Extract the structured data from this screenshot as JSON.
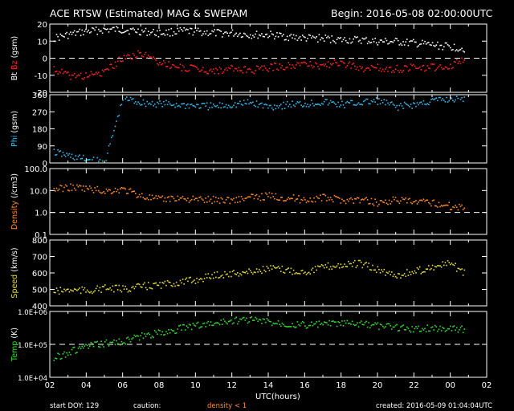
{
  "header": {
    "title": "ACE RTSW (Estimated) MAG & SWEPAM",
    "begin": "Begin: 2016-05-08 02:00:00UTC"
  },
  "footer": {
    "start_doy": "start DOY: 129",
    "caution": "caution:",
    "density_note": "density < 1",
    "created": "created: 2016-05-09 01:04:04UTC"
  },
  "colors": {
    "background": "#000000",
    "axes": "#ffffff",
    "bt": "#ffffff",
    "bz": "#ff2020",
    "phi": "#33bbee",
    "density": "#ff8c2a",
    "speed": "#e6dd3c",
    "temp": "#33dd33",
    "caution_note": "#ff8c2a"
  },
  "chart_data": [
    {
      "type": "scatter",
      "ylabel": [
        {
          "text": "Bt",
          "color": "#ffffff"
        },
        {
          "text": "Bz",
          "color": "#ff2020"
        },
        {
          "text": "(gsm)",
          "color": "#ffffff"
        }
      ],
      "ylim": [
        -20,
        20
      ],
      "yticks": [
        "20",
        "10",
        "0",
        "-10",
        "-20"
      ],
      "ytick_values": [
        20,
        10,
        0,
        -10,
        -20
      ],
      "refline": 0,
      "series": [
        {
          "color": "#ffffff",
          "x": [
            2.2,
            3,
            4,
            5,
            6,
            7,
            8,
            9,
            10,
            11,
            12,
            13,
            14,
            15,
            16,
            17,
            18,
            19,
            20,
            21,
            22,
            23,
            24,
            24.8
          ],
          "y": [
            12,
            14,
            16,
            17,
            17,
            16,
            15,
            16,
            16,
            15,
            15,
            14,
            14,
            13,
            12,
            12,
            11,
            11,
            10,
            10,
            9,
            8,
            7,
            6
          ]
        },
        {
          "color": "#ff2020",
          "x": [
            2.2,
            3,
            4,
            5,
            6,
            7,
            8,
            9,
            10,
            11,
            12,
            13,
            14,
            15,
            16,
            17,
            18,
            19,
            20,
            21,
            22,
            23,
            24,
            24.8
          ],
          "y": [
            -6,
            -10,
            -10,
            -8,
            1,
            3,
            -2,
            -5,
            -6,
            -7,
            -6,
            -7,
            -5,
            -4,
            -3,
            -4,
            -2,
            -6,
            -5,
            -6,
            -5,
            -5,
            -4,
            0
          ]
        }
      ]
    },
    {
      "type": "scatter",
      "ylabel": [
        {
          "text": "Phi",
          "color": "#33bbee"
        },
        {
          "text": "(gsm)",
          "color": "#ffffff"
        }
      ],
      "ylim": [
        0,
        360
      ],
      "yticks": [
        "360",
        "270",
        "180",
        "90",
        "0"
      ],
      "ytick_values": [
        360,
        270,
        180,
        90,
        0
      ],
      "series": [
        {
          "color": "#33bbee",
          "x": [
            2.2,
            3,
            4,
            5,
            6,
            7,
            8,
            9,
            10,
            11,
            12,
            13,
            14,
            15,
            16,
            17,
            18,
            19,
            20,
            21,
            22,
            23,
            24,
            24.8
          ],
          "y": [
            60,
            40,
            20,
            5,
            345,
            320,
            315,
            310,
            305,
            300,
            310,
            320,
            300,
            310,
            315,
            325,
            310,
            320,
            330,
            300,
            310,
            330,
            340,
            345
          ]
        }
      ]
    },
    {
      "type": "scatter",
      "ylabel": [
        {
          "text": "Density",
          "color": "#ff8c2a"
        },
        {
          "text": "(/cm3)",
          "color": "#ffffff"
        }
      ],
      "scale": "log",
      "ylim": [
        0.1,
        100
      ],
      "yticks": [
        "100.0",
        "10.0",
        "1.0",
        "0.1"
      ],
      "ytick_values": [
        100,
        10,
        1,
        0.1
      ],
      "refline": 1,
      "series": [
        {
          "color": "#ff8c2a",
          "x": [
            2.2,
            3,
            4,
            5,
            6,
            7,
            8,
            9,
            10,
            11,
            12,
            13,
            14,
            15,
            16,
            17,
            18,
            19,
            20,
            21,
            22,
            23,
            24,
            24.8
          ],
          "y": [
            12,
            15,
            13,
            10,
            12,
            6,
            4,
            5,
            4,
            4,
            4,
            5,
            6,
            5,
            4,
            5,
            4,
            4,
            3,
            4,
            3,
            3,
            2,
            2
          ]
        }
      ]
    },
    {
      "type": "scatter",
      "ylabel": [
        {
          "text": "Speed",
          "color": "#e6dd3c"
        },
        {
          "text": "(km/s)",
          "color": "#ffffff"
        }
      ],
      "ylim": [
        400,
        800
      ],
      "yticks": [
        "800",
        "700",
        "600",
        "500",
        "400"
      ],
      "ytick_values": [
        800,
        700,
        600,
        500,
        400
      ],
      "series": [
        {
          "color": "#e6dd3c",
          "x": [
            2.2,
            3,
            4,
            5,
            6,
            7,
            8,
            9,
            10,
            11,
            12,
            13,
            14,
            15,
            16,
            17,
            18,
            19,
            20,
            21,
            22,
            23,
            24,
            24.8
          ],
          "y": [
            490,
            500,
            495,
            510,
            505,
            520,
            530,
            545,
            560,
            590,
            600,
            610,
            630,
            620,
            610,
            640,
            650,
            660,
            620,
            590,
            610,
            640,
            660,
            600
          ]
        }
      ]
    },
    {
      "type": "scatter",
      "ylabel": [
        {
          "text": "Temp",
          "color": "#33dd33"
        },
        {
          "text": "(K)",
          "color": "#ffffff"
        }
      ],
      "scale": "log",
      "ylim": [
        10000,
        1000000
      ],
      "yticks": [
        "1.0E+06",
        "1.0E+05",
        "1.0E+04"
      ],
      "ytick_values": [
        1000000,
        100000,
        10000
      ],
      "refline": 100000,
      "series": [
        {
          "color": "#33dd33",
          "x": [
            2.2,
            3,
            4,
            5,
            6,
            7,
            8,
            9,
            10,
            11,
            12,
            13,
            14,
            15,
            16,
            17,
            18,
            19,
            20,
            21,
            22,
            23,
            24,
            24.8
          ],
          "y": [
            40000,
            60000,
            90000,
            110000,
            130000,
            180000,
            230000,
            300000,
            400000,
            450000,
            550000,
            600000,
            500000,
            450000,
            400000,
            430000,
            450000,
            420000,
            380000,
            350000,
            300000,
            320000,
            330000,
            300000
          ]
        }
      ]
    }
  ],
  "xaxis": {
    "label": "UTC(hours)",
    "range": [
      2,
      26
    ],
    "ticks": [
      "02",
      "04",
      "06",
      "08",
      "10",
      "12",
      "14",
      "16",
      "18",
      "20",
      "22",
      "00",
      "02"
    ]
  }
}
